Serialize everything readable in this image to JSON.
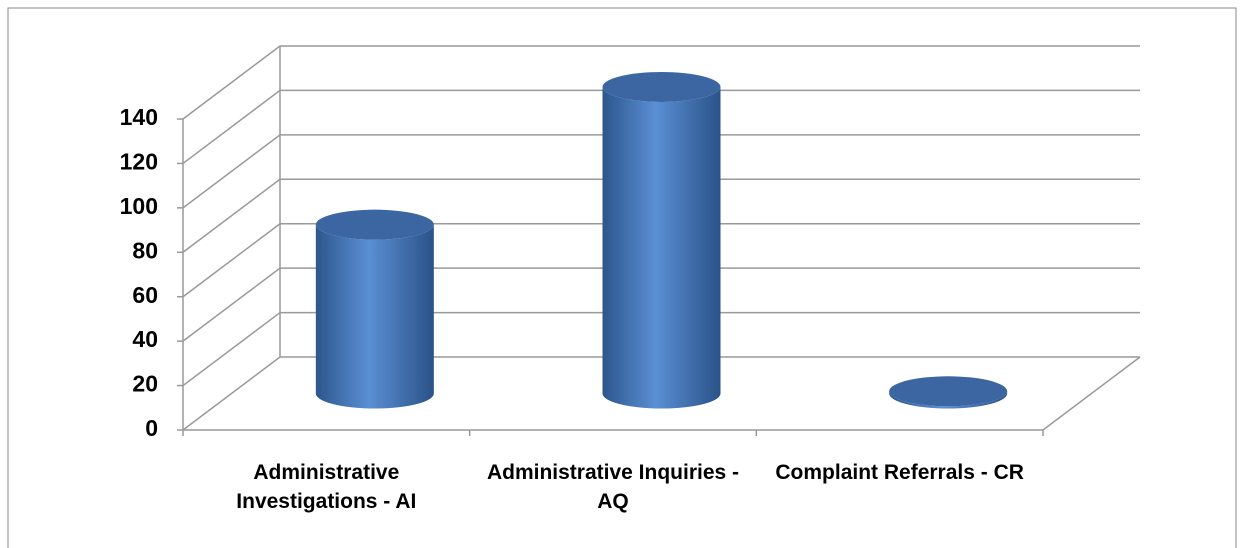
{
  "chart_data": {
    "type": "bar3d",
    "categories": [
      "Administrative Investigations - AI",
      "Administrative Inquiries - AQ",
      "Complaint Referrals - CR"
    ],
    "values": [
      76,
      138,
      1
    ],
    "color": "#4f81bd",
    "ylim": [
      0,
      140
    ],
    "yticks": [
      0,
      20,
      40,
      60,
      80,
      100,
      120,
      140
    ],
    "grid": true
  }
}
